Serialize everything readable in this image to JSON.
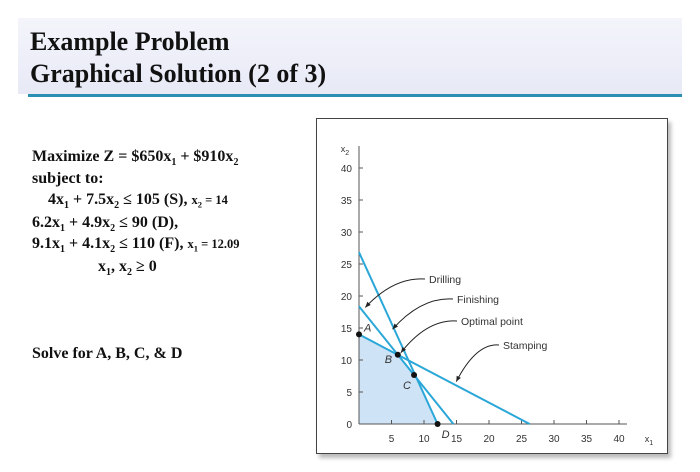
{
  "slide": {
    "title_line1": "Example Problem",
    "title_line2": "Graphical Solution (2 of 3)",
    "solve_text": "Solve for A, B, C, & D"
  },
  "problem": {
    "objective": "Maximize Z = $650x1 + $910x2",
    "subject_to": "subject to:",
    "constraint_stamping": "4x1 + 7.5x2 ≤ 105 (S)",
    "constraint_stamping_note": "x2 = 14",
    "constraint_drilling": "6.2x1 + 4.9x2 ≤ 90 (D)",
    "constraint_finishing": "9.1x1 + 4.1x2 ≤ 110 (F)",
    "constraint_finishing_note": "x1 = 12.09",
    "nonnegativity": "x1, x2 ≥ 0"
  },
  "chart_data": {
    "type": "line",
    "xlabel": "x1",
    "ylabel": "x2",
    "xlim": [
      0,
      40
    ],
    "ylim": [
      0,
      40
    ],
    "xticks": [
      5,
      10,
      15,
      20,
      25,
      30,
      35,
      40
    ],
    "yticks": [
      0,
      5,
      10,
      15,
      20,
      25,
      30,
      35,
      40
    ],
    "grid": false,
    "line_color": "#2aa7d8",
    "region_color": "#cfe3f7",
    "series": [
      {
        "name": "Drilling",
        "x": [
          0,
          14.52
        ],
        "y": [
          18.37,
          0
        ]
      },
      {
        "name": "Finishing",
        "x": [
          0,
          12.09
        ],
        "y": [
          26.83,
          0
        ]
      },
      {
        "name": "Stamping",
        "x": [
          0,
          26.25
        ],
        "y": [
          14,
          0
        ]
      }
    ],
    "feasible_region": {
      "x": [
        0,
        0,
        5.97,
        8.47,
        12.09
      ],
      "y": [
        0,
        14,
        10.82,
        7.65,
        0
      ]
    },
    "points": [
      {
        "label": "A",
        "x": 0,
        "y": 14
      },
      {
        "label": "B",
        "x": 5.97,
        "y": 10.82
      },
      {
        "label": "C",
        "x": 8.47,
        "y": 7.65
      },
      {
        "label": "D",
        "x": 12.09,
        "y": 0
      }
    ],
    "annotations": [
      {
        "text": "Drilling",
        "target_x": 0.5,
        "target_y": 17.9
      },
      {
        "text": "Finishing",
        "target_x": 4.7,
        "target_y": 14.5
      },
      {
        "text": "Optimal point",
        "target_x": 5.97,
        "target_y": 10.82
      },
      {
        "text": "Stamping",
        "target_x": 14.5,
        "target_y": 6.3
      }
    ]
  }
}
